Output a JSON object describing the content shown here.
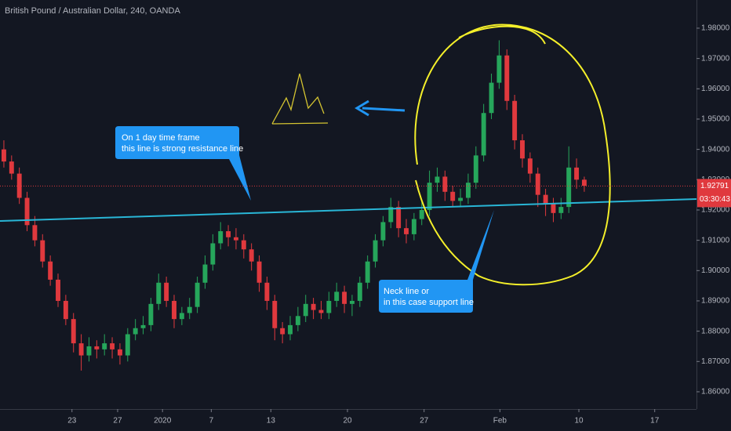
{
  "chart_data": {
    "type": "candlestick",
    "title": "British Pound / Australian Dollar, 240, OANDA",
    "up_color": "#26a65b",
    "down_color": "#e0393e",
    "ylim": [
      1.8543,
      1.9893
    ],
    "yticks": [
      {
        "value": 1.86,
        "label": "1.86000"
      },
      {
        "value": 1.87,
        "label": "1.87000"
      },
      {
        "value": 1.88,
        "label": "1.88000"
      },
      {
        "value": 1.89,
        "label": "1.89000"
      },
      {
        "value": 1.9,
        "label": "1.90000"
      },
      {
        "value": 1.91,
        "label": "1.91000"
      },
      {
        "value": 1.92,
        "label": "1.92000"
      },
      {
        "value": 1.93,
        "label": "1.93000"
      },
      {
        "value": 1.94,
        "label": "1.94000"
      },
      {
        "value": 1.95,
        "label": "1.95000"
      },
      {
        "value": 1.96,
        "label": "1.96000"
      },
      {
        "value": 1.97,
        "label": "1.97000"
      },
      {
        "value": 1.98,
        "label": "1.98000"
      }
    ],
    "xlim": [
      0,
      90
    ],
    "xticks": [
      {
        "value": 9.3,
        "label": "23"
      },
      {
        "value": 15.2,
        "label": "27"
      },
      {
        "value": 21,
        "label": "2020"
      },
      {
        "value": 27.3,
        "label": "7"
      },
      {
        "value": 35,
        "label": "13"
      },
      {
        "value": 44.9,
        "label": "20"
      },
      {
        "value": 54.8,
        "label": "27"
      },
      {
        "value": 64.6,
        "label": "Feb"
      },
      {
        "value": 74.8,
        "label": "10"
      },
      {
        "value": 84.6,
        "label": "17"
      }
    ],
    "grid": false,
    "last_price": {
      "value": 1.92791,
      "label": "1.92791",
      "color": "#e0393e"
    },
    "countdown": "03:30:43",
    "annotations": [
      {
        "lines": [
          "On 1 day time frame",
          "this line is strong resistance line"
        ]
      },
      {
        "lines": [
          "Neck line or",
          "in this case support line"
        ]
      }
    ],
    "ohlc": [
      [
        1.94,
        1.943,
        1.934,
        1.936
      ],
      [
        1.936,
        1.938,
        1.93,
        1.932
      ],
      [
        1.932,
        1.934,
        1.922,
        1.924
      ],
      [
        1.924,
        1.926,
        1.913,
        1.915
      ],
      [
        1.915,
        1.918,
        1.908,
        1.91
      ],
      [
        1.91,
        1.912,
        1.901,
        1.903
      ],
      [
        1.903,
        1.905,
        1.895,
        1.897
      ],
      [
        1.897,
        1.899,
        1.888,
        1.89
      ],
      [
        1.89,
        1.892,
        1.882,
        1.884
      ],
      [
        1.884,
        1.886,
        1.873,
        1.876
      ],
      [
        1.876,
        1.879,
        1.867,
        1.872
      ],
      [
        1.872,
        1.878,
        1.87,
        1.875
      ],
      [
        1.875,
        1.877,
        1.871,
        1.874
      ],
      [
        1.874,
        1.879,
        1.872,
        1.876
      ],
      [
        1.876,
        1.878,
        1.871,
        1.874
      ],
      [
        1.874,
        1.876,
        1.869,
        1.872
      ],
      [
        1.872,
        1.881,
        1.87,
        1.879
      ],
      [
        1.879,
        1.884,
        1.877,
        1.881
      ],
      [
        1.881,
        1.885,
        1.879,
        1.882
      ],
      [
        1.882,
        1.891,
        1.88,
        1.889
      ],
      [
        1.889,
        1.899,
        1.887,
        1.896
      ],
      [
        1.896,
        1.898,
        1.888,
        1.89
      ],
      [
        1.89,
        1.892,
        1.881,
        1.884
      ],
      [
        1.884,
        1.888,
        1.882,
        1.886
      ],
      [
        1.886,
        1.891,
        1.884,
        1.888
      ],
      [
        1.888,
        1.898,
        1.886,
        1.896
      ],
      [
        1.896,
        1.905,
        1.894,
        1.902
      ],
      [
        1.902,
        1.912,
        1.9,
        1.909
      ],
      [
        1.909,
        1.916,
        1.907,
        1.913
      ],
      [
        1.913,
        1.915,
        1.908,
        1.911
      ],
      [
        1.911,
        1.914,
        1.907,
        1.91
      ],
      [
        1.91,
        1.912,
        1.904,
        1.907
      ],
      [
        1.907,
        1.909,
        1.9,
        1.903
      ],
      [
        1.903,
        1.905,
        1.893,
        1.896
      ],
      [
        1.896,
        1.898,
        1.887,
        1.89
      ],
      [
        1.89,
        1.892,
        1.877,
        1.881
      ],
      [
        1.881,
        1.883,
        1.876,
        1.879
      ],
      [
        1.879,
        1.885,
        1.877,
        1.882
      ],
      [
        1.882,
        1.888,
        1.88,
        1.885
      ],
      [
        1.885,
        1.892,
        1.883,
        1.889
      ],
      [
        1.889,
        1.891,
        1.884,
        1.887
      ],
      [
        1.887,
        1.89,
        1.884,
        1.886
      ],
      [
        1.886,
        1.893,
        1.884,
        1.89
      ],
      [
        1.89,
        1.896,
        1.888,
        1.893
      ],
      [
        1.893,
        1.895,
        1.886,
        1.889
      ],
      [
        1.889,
        1.892,
        1.885,
        1.89
      ],
      [
        1.89,
        1.898,
        1.888,
        1.896
      ],
      [
        1.896,
        1.905,
        1.894,
        1.903
      ],
      [
        1.903,
        1.912,
        1.901,
        1.91
      ],
      [
        1.91,
        1.918,
        1.908,
        1.916
      ],
      [
        1.916,
        1.924,
        1.914,
        1.921
      ],
      [
        1.921,
        1.923,
        1.911,
        1.914
      ],
      [
        1.914,
        1.917,
        1.909,
        1.912
      ],
      [
        1.912,
        1.919,
        1.91,
        1.917
      ],
      [
        1.917,
        1.923,
        1.915,
        1.92
      ],
      [
        1.92,
        1.933,
        1.918,
        1.929
      ],
      [
        1.929,
        1.934,
        1.926,
        1.931
      ],
      [
        1.931,
        1.933,
        1.923,
        1.926
      ],
      [
        1.926,
        1.928,
        1.921,
        1.923
      ],
      [
        1.923,
        1.927,
        1.921,
        1.924
      ],
      [
        1.924,
        1.932,
        1.922,
        1.929
      ],
      [
        1.929,
        1.941,
        1.927,
        1.938
      ],
      [
        1.938,
        1.955,
        1.936,
        1.952
      ],
      [
        1.952,
        1.965,
        1.95,
        1.962
      ],
      [
        1.962,
        1.976,
        1.96,
        1.971
      ],
      [
        1.971,
        1.973,
        1.953,
        1.956
      ],
      [
        1.956,
        1.958,
        1.94,
        1.943
      ],
      [
        1.943,
        1.945,
        1.934,
        1.937
      ],
      [
        1.937,
        1.939,
        1.929,
        1.932
      ],
      [
        1.932,
        1.934,
        1.921,
        1.925
      ],
      [
        1.925,
        1.927,
        1.918,
        1.922
      ],
      [
        1.922,
        1.924,
        1.916,
        1.919
      ],
      [
        1.919,
        1.924,
        1.917,
        1.921
      ],
      [
        1.921,
        1.941,
        1.919,
        1.934
      ],
      [
        1.934,
        1.937,
        1.927,
        1.93
      ],
      [
        1.93,
        1.931,
        1.926,
        1.928
      ]
    ]
  }
}
